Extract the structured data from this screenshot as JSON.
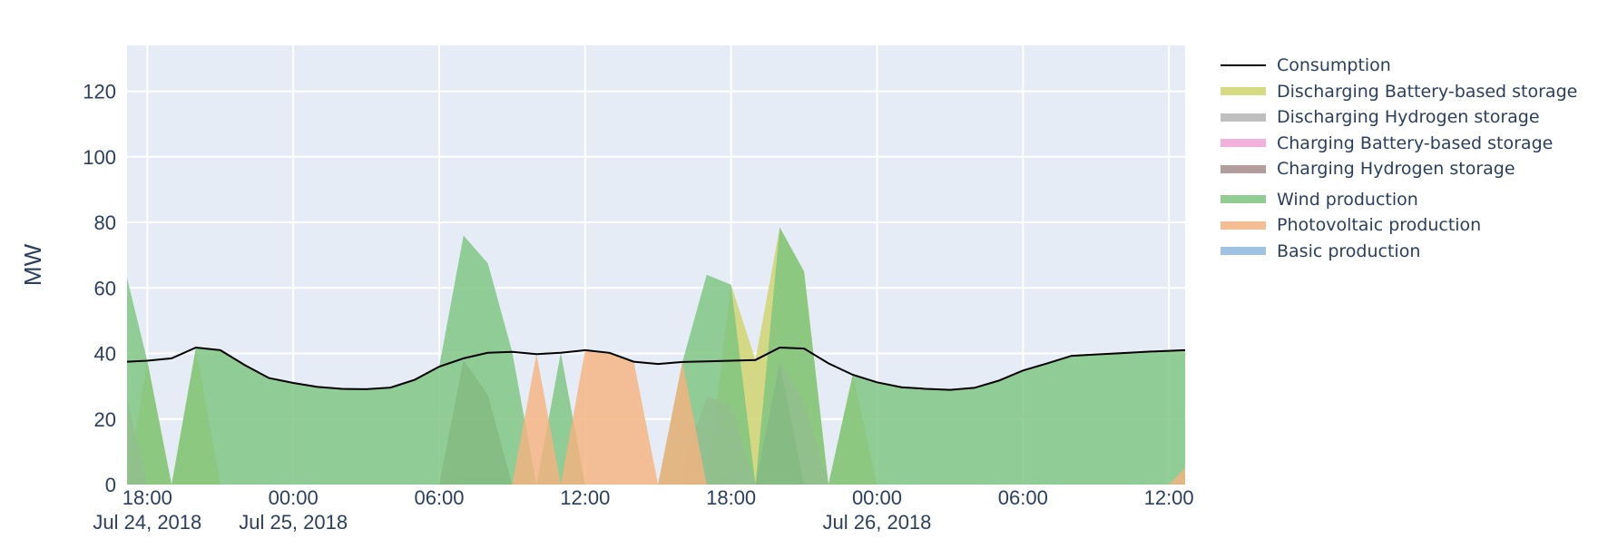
{
  "chart_data": {
    "type": "area",
    "ylabel": "MW",
    "ylim": [
      0,
      134
    ],
    "yticks": [
      0,
      20,
      40,
      60,
      80,
      100,
      120
    ],
    "xlim": [
      "2018-07-24 17:10",
      "2018-07-26 12:40"
    ],
    "xticks": [
      {
        "t": "2018-07-24 18:00",
        "label": "18:00",
        "sublabel": "Jul 24, 2018"
      },
      {
        "t": "2018-07-25 00:00",
        "label": "00:00",
        "sublabel": "Jul 25, 2018"
      },
      {
        "t": "2018-07-25 06:00",
        "label": "06:00",
        "sublabel": ""
      },
      {
        "t": "2018-07-25 12:00",
        "label": "12:00",
        "sublabel": ""
      },
      {
        "t": "2018-07-25 18:00",
        "label": "18:00",
        "sublabel": ""
      },
      {
        "t": "2018-07-26 00:00",
        "label": "00:00",
        "sublabel": "Jul 26, 2018"
      },
      {
        "t": "2018-07-26 06:00",
        "label": "06:00",
        "sublabel": ""
      },
      {
        "t": "2018-07-26 12:00",
        "label": "12:00",
        "sublabel": ""
      }
    ],
    "grid": true,
    "legend_placement": "right",
    "plot_background": "#e5ecf6",
    "series": [
      {
        "name": "Consumption",
        "kind": "line",
        "color": "#000000",
        "x": [
          "2018-07-24 17:10",
          "2018-07-24 18:00",
          "2018-07-24 19:00",
          "2018-07-24 20:00",
          "2018-07-24 21:00",
          "2018-07-24 22:00",
          "2018-07-24 23:00",
          "2018-07-25 00:00",
          "2018-07-25 01:00",
          "2018-07-25 02:00",
          "2018-07-25 03:00",
          "2018-07-25 04:00",
          "2018-07-25 05:00",
          "2018-07-25 06:00",
          "2018-07-25 07:00",
          "2018-07-25 08:00",
          "2018-07-25 09:00",
          "2018-07-25 10:00",
          "2018-07-25 11:00",
          "2018-07-25 12:00",
          "2018-07-25 13:00",
          "2018-07-25 14:00",
          "2018-07-25 15:00",
          "2018-07-25 16:00",
          "2018-07-25 17:00",
          "2018-07-25 18:00",
          "2018-07-25 19:00",
          "2018-07-25 20:00",
          "2018-07-25 21:00",
          "2018-07-25 22:00",
          "2018-07-25 23:00",
          "2018-07-26 00:00",
          "2018-07-26 01:00",
          "2018-07-26 02:00",
          "2018-07-26 03:00",
          "2018-07-26 04:00",
          "2018-07-26 05:00",
          "2018-07-26 06:00",
          "2018-07-26 07:00",
          "2018-07-26 08:00",
          "2018-07-26 09:00",
          "2018-07-26 10:00",
          "2018-07-26 11:00",
          "2018-07-26 12:00",
          "2018-07-26 12:40"
        ],
        "y": [
          37.5,
          37.8,
          38.5,
          41.8,
          41,
          36.5,
          32.5,
          31,
          29.8,
          29.2,
          29.1,
          29.6,
          32,
          36,
          38.5,
          40.2,
          40.5,
          39.8,
          40.2,
          41,
          40.2,
          37.5,
          36.8,
          37.4,
          37.6,
          37.8,
          38,
          41.8,
          41.5,
          37,
          33.5,
          31.2,
          29.7,
          29.2,
          28.9,
          29.5,
          31.7,
          34.8,
          37,
          39.3,
          39.7,
          40.1,
          40.5,
          40.8,
          41
        ]
      },
      {
        "name": "Discharging Battery-based storage",
        "kind": "area",
        "color": "#cfd36a",
        "x": [
          "2018-07-24 17:10",
          "2018-07-24 18:00",
          "2018-07-24 19:00",
          "2018-07-24 20:00",
          "2018-07-24 21:00",
          "2018-07-25 16:00",
          "2018-07-25 17:00",
          "2018-07-25 18:00",
          "2018-07-25 19:00",
          "2018-07-25 20:00",
          "2018-07-25 21:00",
          "2018-07-25 22:00",
          "2018-07-25 23:00",
          "2018-07-26 00:00"
        ],
        "y": [
          0,
          37.8,
          0,
          41.8,
          0,
          0,
          0,
          61,
          38,
          78.5,
          65,
          0,
          33.5,
          0
        ]
      },
      {
        "name": "Discharging Hydrogen storage",
        "kind": "area",
        "color": "#b4b4b4",
        "x": [],
        "y": []
      },
      {
        "name": "Charging Battery-based storage",
        "kind": "area",
        "color": "#f0a3d7",
        "x": [
          "2018-07-24 17:10",
          "2018-07-24 18:00",
          "2018-07-25 15:55",
          "2018-07-25 16:00",
          "2018-07-25 17:00",
          "2018-07-25 18:00",
          "2018-07-25 19:00",
          "2018-07-25 20:00",
          "2018-07-25 21:00",
          "2018-07-25 22:00"
        ],
        "y": [
          26,
          0,
          0,
          5,
          27,
          24,
          0,
          38,
          25,
          0
        ]
      },
      {
        "name": "Charging Hydrogen storage",
        "kind": "area",
        "color": "#a58b8b",
        "x": [
          "2018-07-25 06:00",
          "2018-07-25 07:00",
          "2018-07-25 08:00",
          "2018-07-25 09:00",
          "2018-07-25 19:00",
          "2018-07-25 20:00",
          "2018-07-25 21:00"
        ],
        "y": [
          0,
          38,
          27.5,
          0,
          0,
          37,
          0
        ]
      },
      {
        "name": "Wind production",
        "kind": "area",
        "color": "#7cc47f",
        "x": [
          "2018-07-24 17:10",
          "2018-07-24 18:00",
          "2018-07-24 19:00",
          "2018-07-24 20:00",
          "2018-07-24 21:00",
          "2018-07-24 22:00",
          "2018-07-24 23:00",
          "2018-07-25 00:00",
          "2018-07-25 01:00",
          "2018-07-25 02:00",
          "2018-07-25 03:00",
          "2018-07-25 04:00",
          "2018-07-25 05:00",
          "2018-07-25 06:00",
          "2018-07-25 07:00",
          "2018-07-25 08:00",
          "2018-07-25 09:00",
          "2018-07-25 10:00",
          "2018-07-25 11:00",
          "2018-07-25 12:00",
          "2018-07-25 13:00",
          "2018-07-25 14:00",
          "2018-07-25 15:00",
          "2018-07-25 16:00",
          "2018-07-25 17:00",
          "2018-07-25 18:00",
          "2018-07-25 19:00",
          "2018-07-25 20:00",
          "2018-07-25 21:00",
          "2018-07-25 22:00",
          "2018-07-25 23:00",
          "2018-07-26 00:00",
          "2018-07-26 01:00",
          "2018-07-26 02:00",
          "2018-07-26 03:00",
          "2018-07-26 04:00",
          "2018-07-26 05:00",
          "2018-07-26 06:00",
          "2018-07-26 07:00",
          "2018-07-26 08:00",
          "2018-07-26 09:00",
          "2018-07-26 10:00",
          "2018-07-26 11:00",
          "2018-07-26 12:00",
          "2018-07-26 12:40"
        ],
        "y": [
          63,
          37.8,
          0,
          41.8,
          41,
          36.5,
          32.5,
          31,
          29.8,
          29.2,
          29.1,
          29.6,
          32,
          36,
          76,
          67.5,
          40.5,
          0,
          40.2,
          0,
          0,
          0,
          0,
          37.4,
          64,
          61,
          0,
          78.5,
          65,
          0,
          33.5,
          31.2,
          29.7,
          29.2,
          28.9,
          29.5,
          31.7,
          34.8,
          37,
          39.3,
          39.7,
          40.1,
          40.5,
          40.8,
          41
        ]
      },
      {
        "name": "Photovoltaic production",
        "kind": "area",
        "color": "#f5b27f",
        "x": [
          "2018-07-25 09:00",
          "2018-07-25 10:00",
          "2018-07-25 11:00",
          "2018-07-25 12:00",
          "2018-07-25 13:00",
          "2018-07-25 14:00",
          "2018-07-25 15:00",
          "2018-07-25 16:00",
          "2018-07-25 17:00",
          "2018-07-26 12:00",
          "2018-07-26 12:40"
        ],
        "y": [
          0,
          39.8,
          0,
          41,
          40.2,
          37.5,
          0,
          37.4,
          0,
          0,
          5
        ]
      },
      {
        "name": "Basic production",
        "kind": "area",
        "color": "#8fb8de",
        "x": [],
        "y": []
      }
    ]
  }
}
